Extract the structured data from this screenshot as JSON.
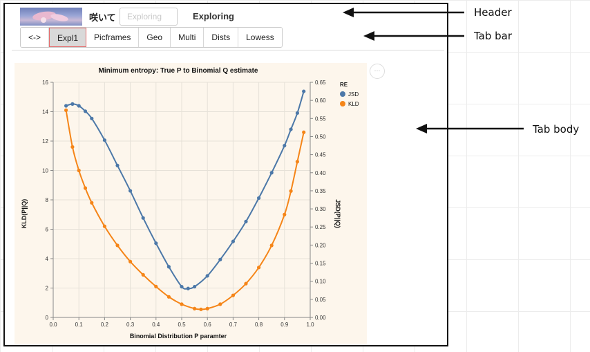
{
  "header": {
    "app_title": "咲いて",
    "search_placeholder": "Exploring",
    "page_title": "Exploring",
    "logo_icon": "flower-photo-icon"
  },
  "tabs": [
    {
      "label": "<->",
      "active": false
    },
    {
      "label": "Expl1",
      "active": true
    },
    {
      "label": "Picframes",
      "active": false
    },
    {
      "label": "Geo",
      "active": false
    },
    {
      "label": "Multi",
      "active": false
    },
    {
      "label": "Dists",
      "active": false
    },
    {
      "label": "Lowess",
      "active": false
    }
  ],
  "chart_menu": {
    "label": "···",
    "icon": "more-options-icon"
  },
  "annotations": {
    "header": "Header",
    "tab_bar": "Tab bar",
    "tab_body": "Tab body"
  },
  "colors": {
    "jsd": "#4c78a8",
    "kld": "#f58518",
    "plot_bg": "#fdf6ec",
    "active_tab_border": "#e56b6b"
  },
  "chart_data": {
    "type": "line",
    "title": "Minimum entropy: True P to Binomial Q estimate",
    "xlabel": "Binomial Distribution P paramter",
    "ylabel_left": "KLD(P||Q)",
    "ylabel_right": "JSD(P||Q)",
    "xlim": [
      0.0,
      1.0
    ],
    "ylim_left": [
      0,
      16
    ],
    "ylim_right": [
      0.0,
      0.65
    ],
    "x_ticks": [
      "0.0",
      "0.1",
      "0.2",
      "0.3",
      "0.4",
      "0.5",
      "0.6",
      "0.7",
      "0.8",
      "0.9",
      "1.0"
    ],
    "y_left_ticks": [
      "0",
      "2",
      "4",
      "6",
      "8",
      "10",
      "12",
      "14",
      "16"
    ],
    "y_right_ticks": [
      "0.00",
      "0.05",
      "0.10",
      "0.15",
      "0.20",
      "0.25",
      "0.30",
      "0.35",
      "0.40",
      "0.45",
      "0.50",
      "0.55",
      "0.60",
      "0.65"
    ],
    "legend": {
      "title": "RE",
      "position": "top-right",
      "entries": [
        "JSD",
        "KLD"
      ]
    },
    "series": [
      {
        "name": "JSD",
        "axis": "right",
        "x": [
          0.05,
          0.075,
          0.1,
          0.125,
          0.15,
          0.2,
          0.25,
          0.3,
          0.35,
          0.4,
          0.45,
          0.5,
          0.525,
          0.55,
          0.6,
          0.65,
          0.7,
          0.75,
          0.8,
          0.85,
          0.9,
          0.925,
          0.95,
          0.975
        ],
        "values": [
          0.585,
          0.59,
          0.585,
          0.57,
          0.55,
          0.49,
          0.42,
          0.35,
          0.275,
          0.205,
          0.14,
          0.085,
          0.08,
          0.085,
          0.115,
          0.16,
          0.21,
          0.265,
          0.33,
          0.4,
          0.475,
          0.52,
          0.565,
          0.625
        ]
      },
      {
        "name": "KLD",
        "axis": "left",
        "x": [
          0.05,
          0.075,
          0.1,
          0.125,
          0.15,
          0.2,
          0.25,
          0.3,
          0.35,
          0.4,
          0.45,
          0.5,
          0.55,
          0.575,
          0.6,
          0.65,
          0.7,
          0.75,
          0.8,
          0.85,
          0.9,
          0.925,
          0.95,
          0.975
        ],
        "values": [
          14.1,
          11.6,
          10.0,
          8.8,
          7.8,
          6.2,
          4.9,
          3.8,
          2.9,
          2.1,
          1.4,
          0.9,
          0.6,
          0.55,
          0.6,
          0.9,
          1.5,
          2.3,
          3.4,
          4.9,
          7.0,
          8.6,
          10.6,
          12.6
        ]
      }
    ]
  }
}
